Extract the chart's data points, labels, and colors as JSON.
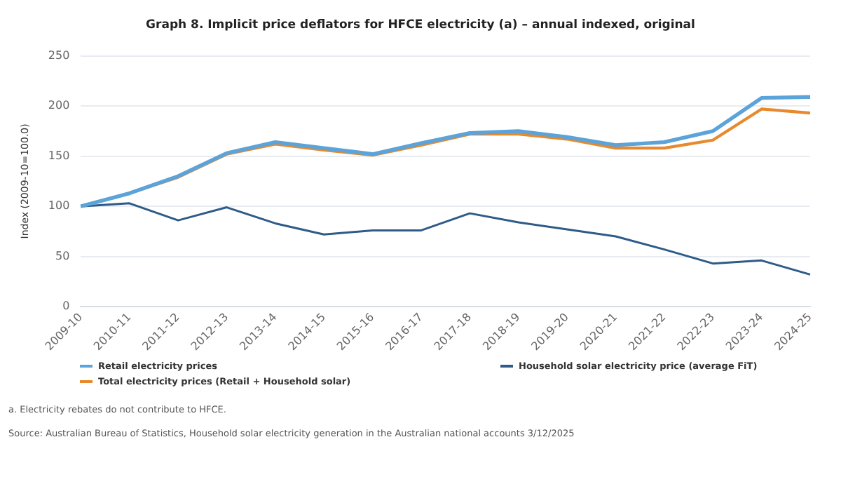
{
  "chart_data": {
    "type": "line",
    "title": "Graph 8. Implicit price deflators for HFCE electricity (a) – annual indexed, original",
    "ylabel": "Index (2009-10=100.0)",
    "categories": [
      "2009-10",
      "2010-11",
      "2011-12",
      "2012-13",
      "2013-14",
      "2014-15",
      "2015-16",
      "2016-17",
      "2017-18",
      "2018-19",
      "2019-20",
      "2020-21",
      "2021-22",
      "2022-23",
      "2023-24",
      "2024-25"
    ],
    "series": [
      {
        "name": "Retail electricity prices",
        "color": "#5ba3d9",
        "values": [
          100,
          113,
          130,
          153,
          164,
          158,
          152,
          163,
          173,
          175,
          169,
          161,
          164,
          175,
          208,
          209
        ]
      },
      {
        "name": "Total electricity prices (Retail + Household solar)",
        "color": "#e8892b",
        "values": [
          100,
          113,
          129,
          152,
          162,
          156,
          151,
          161,
          172,
          172,
          167,
          158,
          158,
          166,
          197,
          193
        ]
      },
      {
        "name": "Household solar electricity price (average FiT)",
        "color": "#2e5b88",
        "values": [
          100,
          103,
          86,
          99,
          83,
          72,
          76,
          76,
          93,
          84,
          77,
          70,
          57,
          43,
          46,
          32
        ]
      }
    ],
    "ylim": [
      0,
      250
    ],
    "yticks": [
      0,
      50,
      100,
      150,
      200,
      250
    ],
    "grid": "y",
    "legend": "bottom",
    "marker": "none",
    "line_style": "solid",
    "annotations": [
      "a. Electricity rebates do not contribute to HFCE.",
      "Source: Australian Bureau of Statistics, Household solar electricity generation in the Australian national accounts 3/12/2025"
    ]
  }
}
